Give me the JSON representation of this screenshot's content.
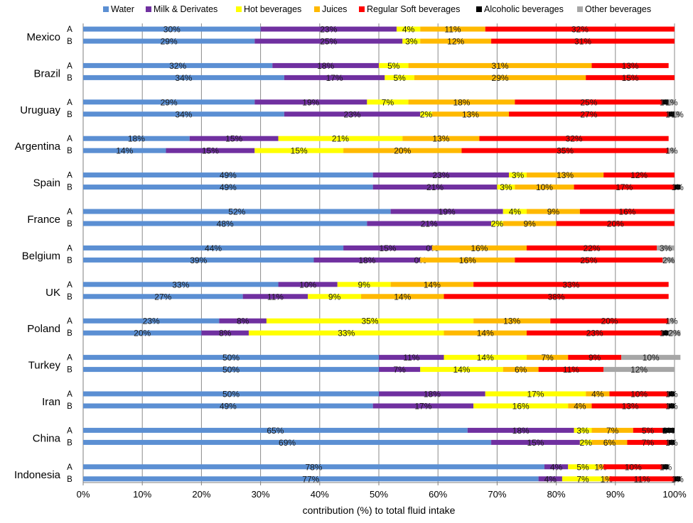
{
  "chart_data": {
    "type": "bar",
    "orientation": "horizontal",
    "stacked": true,
    "xlabel": "contribution (%) to total fluid intake",
    "xlim": [
      0,
      100
    ],
    "xticks": [
      "0%",
      "10%",
      "20%",
      "30%",
      "40%",
      "50%",
      "60%",
      "70%",
      "80%",
      "90%",
      "100%"
    ],
    "grid": true,
    "legend": "top",
    "series": [
      {
        "name": "Water",
        "color": "#5B8FD3"
      },
      {
        "name": "Milk & Derivates",
        "color": "#7030A0"
      },
      {
        "name": "Hot beverages",
        "color": "#FFFF00"
      },
      {
        "name": "Juices",
        "color": "#FFB900"
      },
      {
        "name": "Regular Soft beverages",
        "color": "#FF0000"
      },
      {
        "name": "Alcoholic beverages",
        "color": "#000000"
      },
      {
        "name": "Other beverages",
        "color": "#A6A6A6"
      }
    ],
    "groups": [
      {
        "country": "Mexico",
        "rows": [
          {
            "label": "A",
            "values": [
              30,
              23,
              4,
              11,
              32,
              0,
              0
            ]
          },
          {
            "label": "B",
            "values": [
              29,
              25,
              3,
              12,
              31,
              0,
              0
            ]
          }
        ]
      },
      {
        "country": "Brazil",
        "rows": [
          {
            "label": "A",
            "values": [
              32,
              18,
              5,
              31,
              13,
              0,
              0
            ]
          },
          {
            "label": "B",
            "values": [
              34,
              17,
              5,
              29,
              15,
              0,
              0
            ]
          }
        ]
      },
      {
        "country": "Uruguay",
        "rows": [
          {
            "label": "A",
            "values": [
              29,
              19,
              7,
              18,
              25,
              1,
              1
            ]
          },
          {
            "label": "B",
            "values": [
              34,
              23,
              2,
              13,
              27,
              1,
              1
            ]
          }
        ]
      },
      {
        "country": "Argentina",
        "rows": [
          {
            "label": "A",
            "values": [
              18,
              15,
              21,
              13,
              32,
              0,
              0
            ]
          },
          {
            "label": "B",
            "values": [
              14,
              15,
              15,
              20,
              35,
              0,
              1
            ]
          }
        ]
      },
      {
        "country": "Spain",
        "rows": [
          {
            "label": "A",
            "values": [
              49,
              23,
              3,
              13,
              12,
              0,
              0
            ]
          },
          {
            "label": "B",
            "values": [
              49,
              21,
              3,
              10,
              17,
              1,
              0
            ]
          }
        ]
      },
      {
        "country": "France",
        "rows": [
          {
            "label": "A",
            "values": [
              52,
              19,
              4,
              9,
              16,
              0,
              0
            ]
          },
          {
            "label": "B",
            "values": [
              48,
              21,
              2,
              9,
              20,
              0,
              0
            ]
          }
        ]
      },
      {
        "country": "Belgium",
        "rows": [
          {
            "label": "A",
            "values": [
              44,
              15,
              0,
              16,
              22,
              0,
              3
            ]
          },
          {
            "label": "B",
            "values": [
              39,
              18,
              0,
              16,
              25,
              0,
              2
            ]
          }
        ]
      },
      {
        "country": "UK",
        "rows": [
          {
            "label": "A",
            "values": [
              33,
              10,
              9,
              14,
              33,
              0,
              0
            ]
          },
          {
            "label": "B",
            "values": [
              27,
              11,
              9,
              14,
              38,
              0,
              0
            ]
          }
        ]
      },
      {
        "country": "Poland",
        "rows": [
          {
            "label": "A",
            "values": [
              23,
              8,
              35,
              13,
              20,
              0,
              1
            ]
          },
          {
            "label": "B",
            "values": [
              20,
              8,
              33,
              14,
              23,
              1,
              2
            ]
          }
        ]
      },
      {
        "country": "Turkey",
        "rows": [
          {
            "label": "A",
            "values": [
              50,
              11,
              14,
              7,
              9,
              0,
              10
            ]
          },
          {
            "label": "B",
            "values": [
              50,
              7,
              14,
              6,
              11,
              0,
              12
            ]
          }
        ]
      },
      {
        "country": "Iran",
        "rows": [
          {
            "label": "A",
            "values": [
              50,
              18,
              17,
              4,
              10,
              1,
              0
            ]
          },
          {
            "label": "B",
            "values": [
              49,
              17,
              16,
              4,
              13,
              1,
              0
            ]
          }
        ]
      },
      {
        "country": "China",
        "rows": [
          {
            "label": "A",
            "values": [
              65,
              18,
              3,
              7,
              5,
              2,
              0
            ]
          },
          {
            "label": "B",
            "values": [
              69,
              15,
              2,
              6,
              7,
              1,
              0
            ]
          }
        ]
      },
      {
        "country": "Indonesia",
        "rows": [
          {
            "label": "A",
            "values": [
              78,
              4,
              5,
              1,
              10,
              1,
              0
            ]
          },
          {
            "label": "B",
            "values": [
              77,
              4,
              7,
              1,
              11,
              1,
              0
            ]
          }
        ]
      }
    ]
  }
}
